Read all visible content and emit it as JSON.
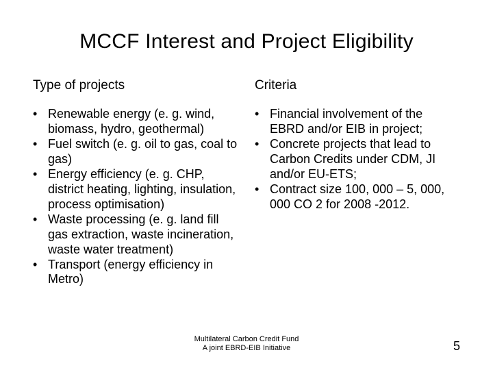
{
  "title": "MCCF Interest and Project Eligibility",
  "left": {
    "heading": "Type of projects",
    "items": [
      "Renewable energy (e. g. wind, biomass, hydro, geothermal)",
      "Fuel switch (e. g. oil to gas, coal to gas)",
      "Energy efficiency (e. g. CHP, district heating, lighting, insulation, process optimisation)",
      "Waste processing (e. g. land fill gas extraction, waste incineration, waste water treatment)",
      "Transport (energy efficiency in Metro)"
    ]
  },
  "right": {
    "heading": "Criteria",
    "items": [
      "Financial involvement of the EBRD and/or EIB in project;",
      "Concrete projects that lead to Carbon Credits under CDM, JI and/or EU-ETS;",
      "Contract size 100, 000 – 5, 000, 000 CO 2 for 2008 -2012."
    ]
  },
  "footer": {
    "line1": "Multilateral Carbon Credit Fund",
    "line2": "A joint EBRD-EIB Initiative"
  },
  "page_number": "5",
  "bullet_char": "•"
}
